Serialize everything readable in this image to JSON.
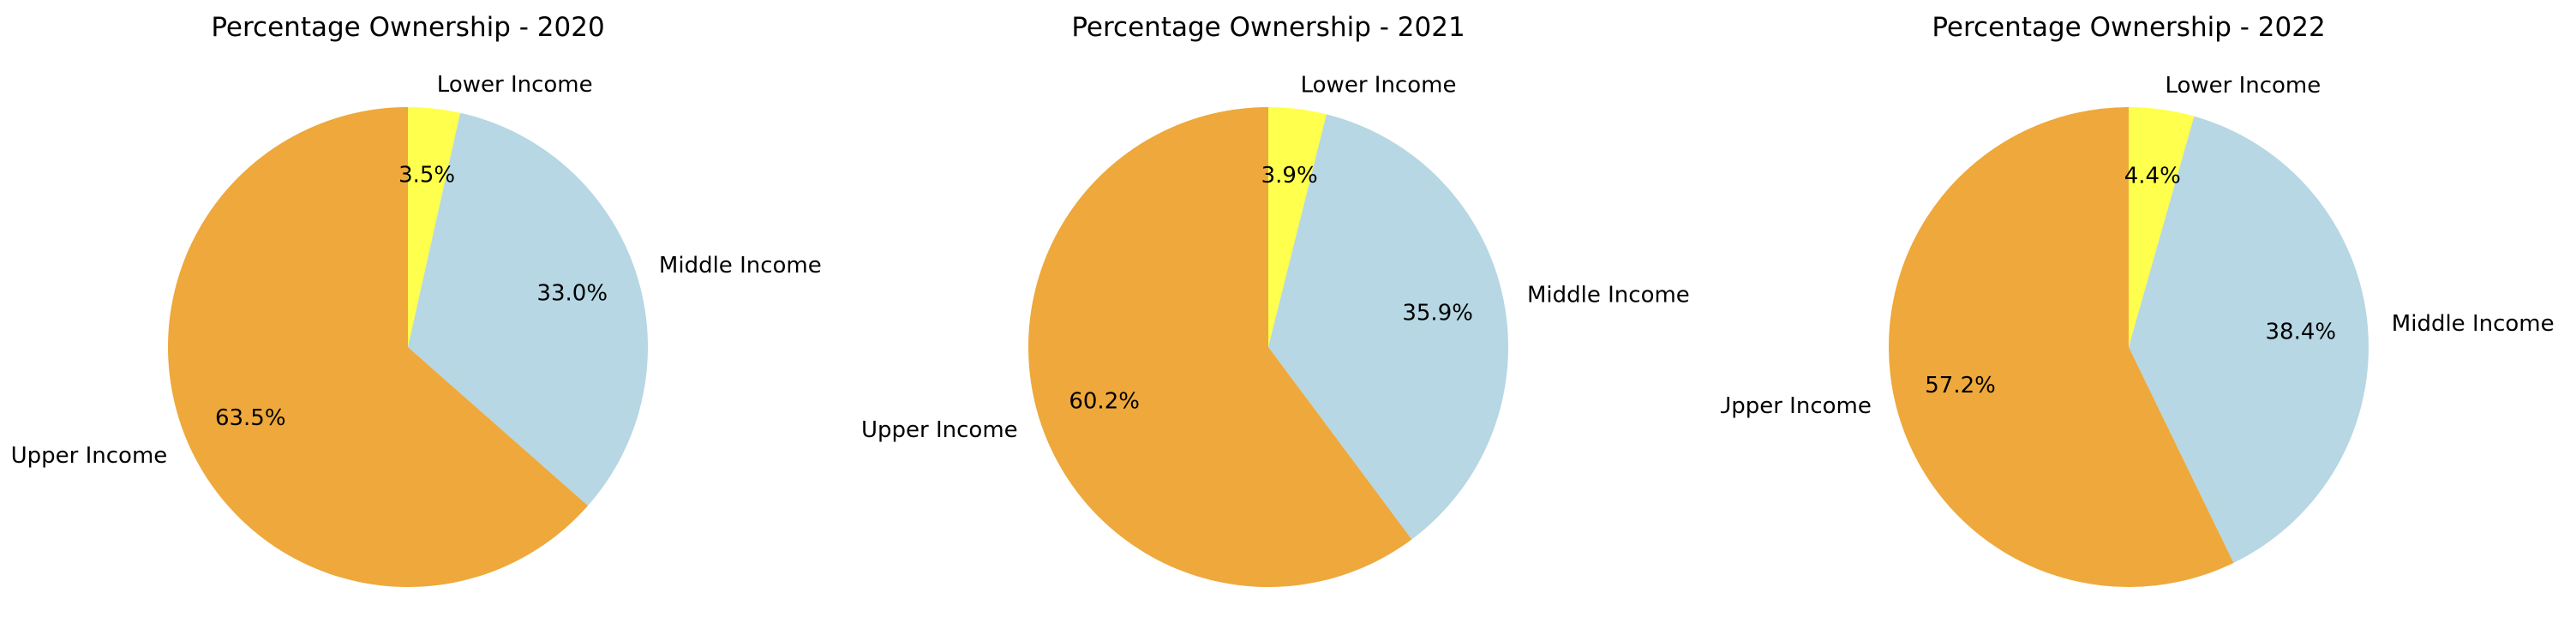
{
  "chart_data": [
    {
      "type": "pie",
      "title": "Percentage Ownership - 2020",
      "categories": [
        "Lower Income",
        "Middle Income",
        "Upper Income"
      ],
      "values": [
        3.5,
        33.0,
        63.5
      ],
      "value_labels": [
        "3.5%",
        "33.0%",
        "63.5%"
      ],
      "colors": [
        "#ffff4d",
        "#b6d7e3",
        "#eea83b"
      ],
      "start_angle": "top",
      "direction": "clockwise",
      "legend": "none"
    },
    {
      "type": "pie",
      "title": "Percentage Ownership - 2021",
      "categories": [
        "Lower Income",
        "Middle Income",
        "Upper Income"
      ],
      "values": [
        3.9,
        35.9,
        60.2
      ],
      "value_labels": [
        "3.9%",
        "35.9%",
        "60.2%"
      ],
      "colors": [
        "#ffff4d",
        "#b6d7e3",
        "#eea83b"
      ],
      "start_angle": "top",
      "direction": "clockwise",
      "legend": "none"
    },
    {
      "type": "pie",
      "title": "Percentage Ownership - 2022",
      "categories": [
        "Lower Income",
        "Middle Income",
        "Upper Income"
      ],
      "values": [
        4.4,
        38.4,
        57.2
      ],
      "value_labels": [
        "4.4%",
        "38.4%",
        "57.2%"
      ],
      "colors": [
        "#ffff4d",
        "#b6d7e3",
        "#eea83b"
      ],
      "start_angle": "top",
      "direction": "clockwise",
      "legend": "none"
    }
  ]
}
